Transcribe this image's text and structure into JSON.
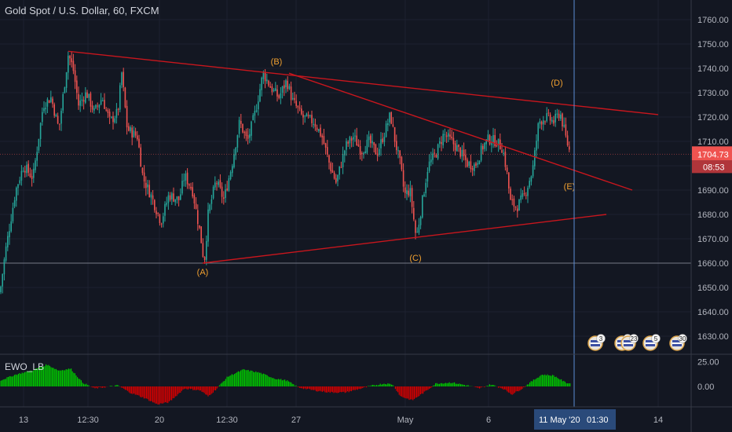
{
  "header": {
    "title": "Gold Spot / U.S. Dollar, 60, FXCM"
  },
  "price_axis": {
    "ticks": [
      "1760.00",
      "1750.00",
      "1740.00",
      "1730.00",
      "1720.00",
      "1710.00",
      "1700.00",
      "1690.00",
      "1680.00",
      "1670.00",
      "1660.00",
      "1650.00",
      "1640.00",
      "1630.00"
    ],
    "last_price": "1704.73",
    "countdown": "08:53"
  },
  "indicator": {
    "name": "EWO_LB",
    "ticks": [
      "25.00",
      "0.00"
    ]
  },
  "time_axis": {
    "ticks": [
      "13",
      "12:30",
      "20",
      "12:30",
      "27",
      "May",
      "6",
      "14"
    ],
    "crosshair_date": "11 May '20",
    "crosshair_time": "01:30"
  },
  "wave_labels": [
    "(A)",
    "(B)",
    "(C)",
    "(D)",
    "(E)"
  ],
  "event_badges": [
    "3",
    "11",
    "23",
    "5",
    "30"
  ],
  "colors": {
    "background": "#131722",
    "up": "#26a69a",
    "down": "#ef5350",
    "trendline": "#c8161d",
    "wave_label": "#f0a030",
    "osc_up": "#00c400",
    "osc_down": "#d40000",
    "crosshair": "#5b8dd6",
    "price_tag": "#ef5350",
    "price_tag_dark": "#b0353a"
  },
  "chart_data": {
    "type": "candlestick",
    "symbol": "Gold Spot / U.S. Dollar",
    "interval": "60",
    "ylim": [
      1625,
      1767
    ],
    "price_series": [
      [
        0,
        1648
      ],
      [
        7,
        1665
      ],
      [
        20,
        1690
      ],
      [
        30,
        1700
      ],
      [
        42,
        1695
      ],
      [
        55,
        1725
      ],
      [
        65,
        1728
      ],
      [
        75,
        1715
      ],
      [
        87,
        1746
      ],
      [
        93,
        1740
      ],
      [
        100,
        1725
      ],
      [
        110,
        1730
      ],
      [
        120,
        1722
      ],
      [
        130,
        1728
      ],
      [
        140,
        1718
      ],
      [
        150,
        1722
      ],
      [
        155,
        1738
      ],
      [
        162,
        1715
      ],
      [
        175,
        1712
      ],
      [
        182,
        1695
      ],
      [
        192,
        1688
      ],
      [
        205,
        1677
      ],
      [
        215,
        1688
      ],
      [
        228,
        1686
      ],
      [
        235,
        1696
      ],
      [
        245,
        1690
      ],
      [
        255,
        1672
      ],
      [
        260,
        1660
      ],
      [
        265,
        1680
      ],
      [
        275,
        1694
      ],
      [
        285,
        1686
      ],
      [
        295,
        1700
      ],
      [
        305,
        1718
      ],
      [
        315,
        1710
      ],
      [
        325,
        1722
      ],
      [
        335,
        1738
      ],
      [
        345,
        1732
      ],
      [
        355,
        1728
      ],
      [
        365,
        1735
      ],
      [
        372,
        1727
      ],
      [
        385,
        1720
      ],
      [
        400,
        1718
      ],
      [
        410,
        1712
      ],
      [
        420,
        1700
      ],
      [
        428,
        1693
      ],
      [
        440,
        1708
      ],
      [
        450,
        1712
      ],
      [
        460,
        1706
      ],
      [
        470,
        1710
      ],
      [
        480,
        1705
      ],
      [
        490,
        1714
      ],
      [
        497,
        1721
      ],
      [
        503,
        1710
      ],
      [
        510,
        1700
      ],
      [
        515,
        1688
      ],
      [
        522,
        1690
      ],
      [
        530,
        1670
      ],
      [
        538,
        1686
      ],
      [
        545,
        1700
      ],
      [
        555,
        1705
      ],
      [
        565,
        1713
      ],
      [
        575,
        1710
      ],
      [
        585,
        1706
      ],
      [
        595,
        1701
      ],
      [
        605,
        1700
      ],
      [
        615,
        1708
      ],
      [
        622,
        1711
      ],
      [
        632,
        1710
      ],
      [
        640,
        1707
      ],
      [
        645,
        1698
      ],
      [
        650,
        1685
      ],
      [
        658,
        1683
      ],
      [
        668,
        1688
      ],
      [
        678,
        1698
      ],
      [
        686,
        1718
      ],
      [
        695,
        1720
      ],
      [
        705,
        1718
      ],
      [
        713,
        1722
      ],
      [
        720,
        1712
      ],
      [
        726,
        1705
      ]
    ],
    "oscillator_series": [
      [
        0,
        6
      ],
      [
        20,
        12
      ],
      [
        40,
        16
      ],
      [
        60,
        22
      ],
      [
        75,
        16
      ],
      [
        90,
        18
      ],
      [
        105,
        4
      ],
      [
        120,
        -2
      ],
      [
        150,
        1
      ],
      [
        165,
        -6
      ],
      [
        185,
        -12
      ],
      [
        200,
        -18
      ],
      [
        215,
        -16
      ],
      [
        235,
        -2
      ],
      [
        255,
        -4
      ],
      [
        265,
        -10
      ],
      [
        275,
        -3
      ],
      [
        290,
        10
      ],
      [
        310,
        17
      ],
      [
        330,
        14
      ],
      [
        350,
        8
      ],
      [
        365,
        6
      ],
      [
        380,
        -1
      ],
      [
        400,
        -4
      ],
      [
        420,
        -6
      ],
      [
        440,
        -6
      ],
      [
        460,
        -2
      ],
      [
        475,
        1
      ],
      [
        490,
        3
      ],
      [
        500,
        2
      ],
      [
        510,
        -10
      ],
      [
        525,
        -14
      ],
      [
        540,
        -6
      ],
      [
        555,
        3
      ],
      [
        575,
        4
      ],
      [
        595,
        1
      ],
      [
        610,
        -2
      ],
      [
        625,
        2
      ],
      [
        640,
        -2
      ],
      [
        652,
        -8
      ],
      [
        665,
        -2
      ],
      [
        675,
        4
      ],
      [
        690,
        12
      ],
      [
        705,
        11
      ],
      [
        720,
        4
      ],
      [
        726,
        3
      ]
    ],
    "oscillator_ylim": [
      -24,
      28
    ],
    "trendlines": [
      {
        "from": [
          87,
          1747
        ],
        "to": [
          838,
          1721
        ]
      },
      {
        "from": [
          368,
          1738
        ],
        "to": [
          805,
          1690
        ]
      },
      {
        "from": [
          258,
          1660
        ],
        "to": [
          772,
          1680
        ]
      }
    ],
    "horizontal_level": 1660,
    "crosshair_x": 731,
    "last_price": 1704.73
  }
}
